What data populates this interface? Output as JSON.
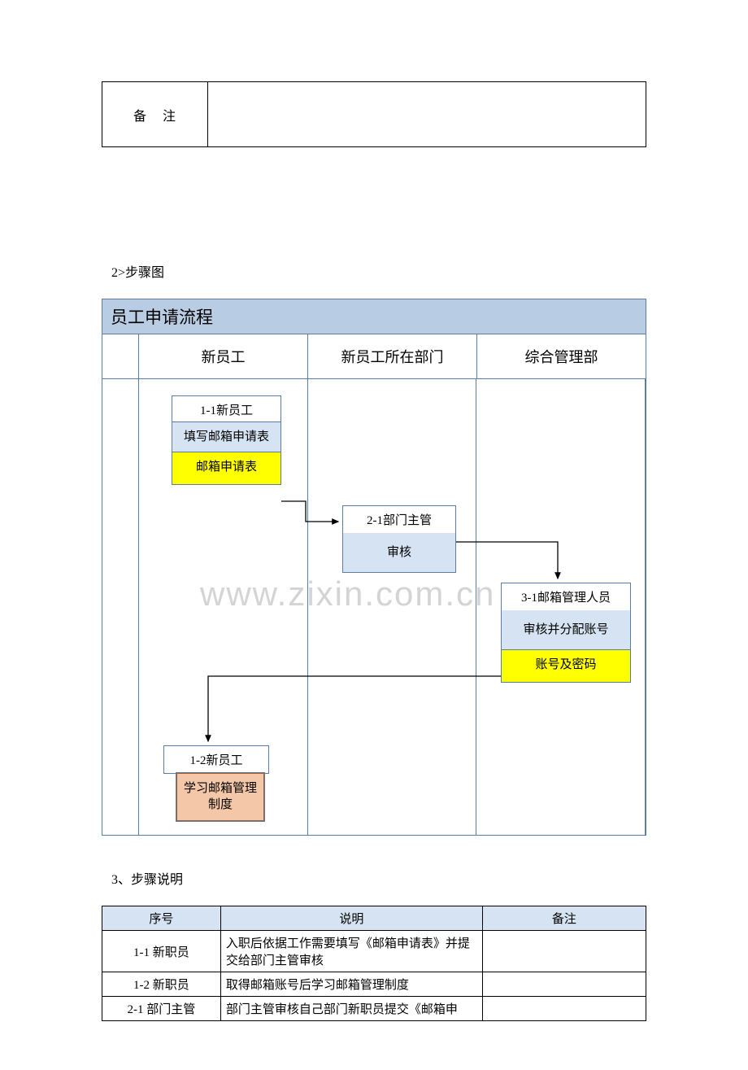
{
  "notes_label": "备注",
  "notes_value": "",
  "section2_label": "2>步骤图",
  "section3_label": "3、步骤说明",
  "watermark": "www.zixin.com.cn",
  "flow": {
    "title": "员工申请流程",
    "lanes": [
      "新员工",
      "新员工所在部门",
      "综合管理部"
    ],
    "nodes": {
      "n11": {
        "title": "1-1新员工",
        "body": "填写邮箱申请表",
        "doc": "邮箱申请表"
      },
      "n21": {
        "title": "2-1部门主管",
        "body": "审核"
      },
      "n31": {
        "title": "3-1邮箱管理人员",
        "body": "审核并分配账号",
        "doc": "账号及密码"
      },
      "n12_title": "1-2新员工",
      "n12_body": "学习邮箱管理制度"
    },
    "colors": {
      "border": "#5b7ca3",
      "header_bg": "#b8cce4",
      "node_body_bg": "#d6e3f2",
      "doc_bg": "#ffff00",
      "orange_bg": "#f4c7a8"
    }
  },
  "steps": {
    "headers": [
      "序号",
      "说明",
      "备注"
    ],
    "rows": [
      {
        "seq": "1-1 新职员",
        "desc": "入职后依据工作需要填写《邮箱申请表》并提交给部门主管审核",
        "note": ""
      },
      {
        "seq": "1-2 新职员",
        "desc": "取得邮箱账号后学习邮箱管理制度",
        "note": ""
      },
      {
        "seq": "2-1 部门主管",
        "desc": "部门主管审核自己部门新职员提交《邮箱申",
        "note": ""
      }
    ]
  }
}
